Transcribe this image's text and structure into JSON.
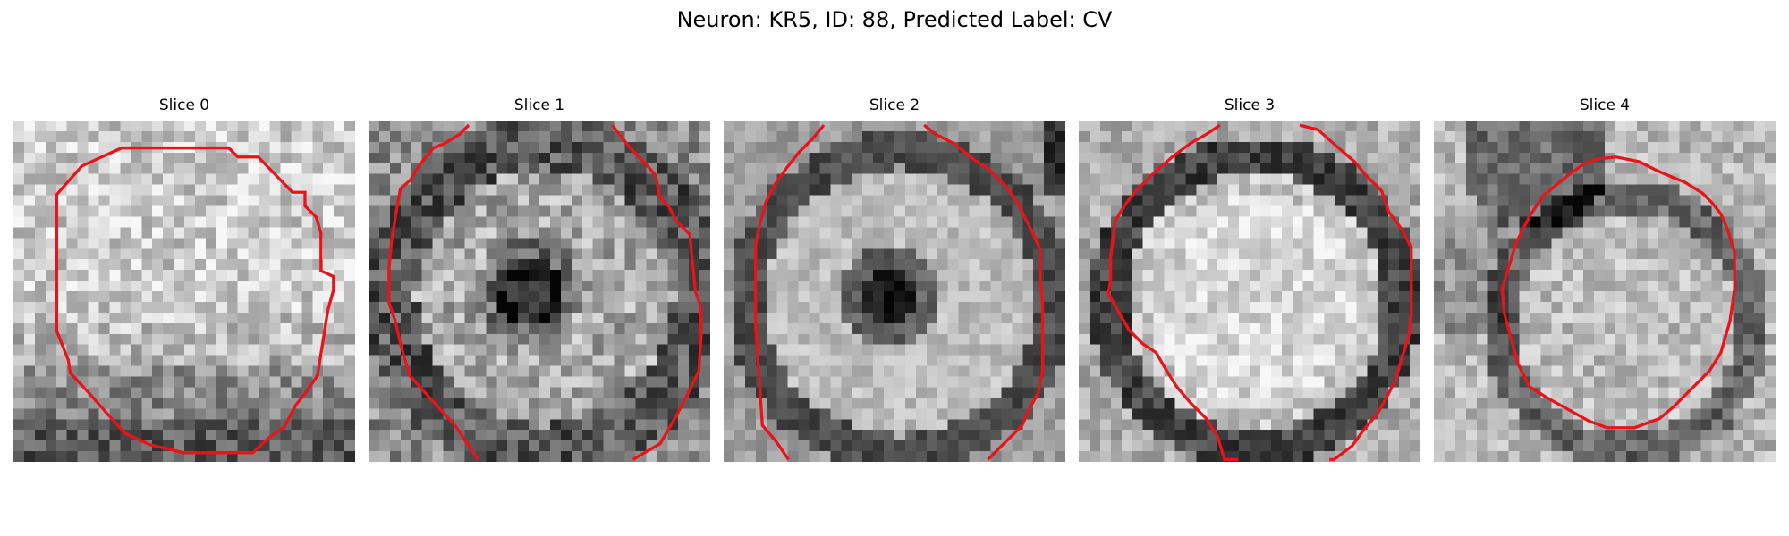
{
  "figure": {
    "title": "Neuron: KR5, ID: 88, Predicted Label: CV"
  },
  "colors": {
    "contour": "#e8141a",
    "background": "#ffffff",
    "image_colormap": "grayscale"
  },
  "slices": [
    {
      "title": "Slice 0"
    },
    {
      "title": "Slice 1"
    },
    {
      "title": "Slice 2"
    },
    {
      "title": "Slice 3"
    },
    {
      "title": "Slice 4"
    }
  ]
}
